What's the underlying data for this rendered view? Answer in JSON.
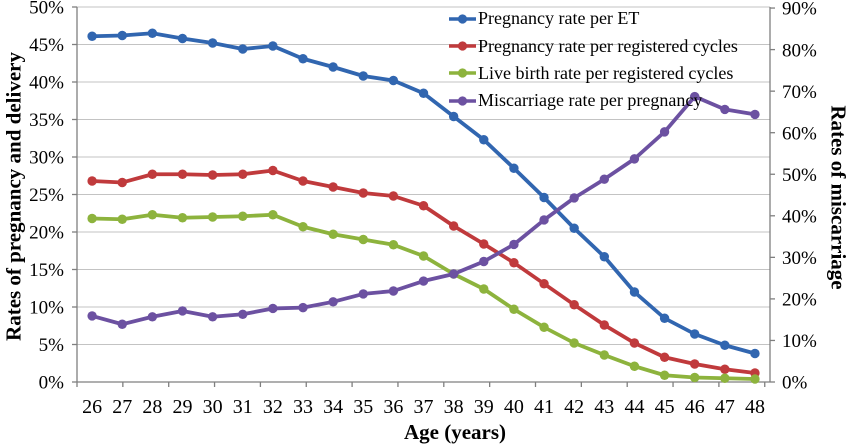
{
  "chart_data": {
    "type": "line",
    "title": "",
    "xlabel": "Age (years)",
    "x_categories": [
      "26",
      "27",
      "28",
      "29",
      "30",
      "31",
      "32",
      "33",
      "34",
      "35",
      "36",
      "37",
      "38",
      "39",
      "40",
      "41",
      "42",
      "43",
      "44",
      "45",
      "46",
      "47",
      "48"
    ],
    "left_axis": {
      "label": "Rates of pregnancy and delivery",
      "min": 0,
      "max": 50,
      "step": 5,
      "tick_labels": [
        "0%",
        "5%",
        "10%",
        "15%",
        "20%",
        "25%",
        "30%",
        "35%",
        "40%",
        "45%",
        "50%"
      ]
    },
    "right_axis": {
      "label": "Rates of miscarriage",
      "min": 0,
      "max": 90,
      "step": 10,
      "tick_labels": [
        "0%",
        "10%",
        "20%",
        "30%",
        "40%",
        "50%",
        "60%",
        "70%",
        "80%",
        "90%"
      ]
    },
    "grid": true,
    "legend_position": "top-right-inside",
    "marker": "circle",
    "series": [
      {
        "name": "Pregnancy rate per ET",
        "color": "#3166B0",
        "axis": "left",
        "values": [
          46.1,
          46.2,
          46.5,
          45.8,
          45.2,
          44.4,
          44.8,
          43.1,
          42.0,
          40.8,
          40.2,
          38.5,
          35.4,
          32.3,
          28.5,
          24.6,
          20.5,
          16.7,
          12.0,
          8.5,
          6.4,
          4.9,
          3.8
        ]
      },
      {
        "name": "Pregnancy rate per registered cycles",
        "color": "#C03A3C",
        "axis": "left",
        "values": [
          26.8,
          26.6,
          27.7,
          27.7,
          27.6,
          27.7,
          28.2,
          26.8,
          26.0,
          25.2,
          24.8,
          23.5,
          20.8,
          18.4,
          15.9,
          13.1,
          10.3,
          7.6,
          5.2,
          3.3,
          2.4,
          1.7,
          1.2
        ]
      },
      {
        "name": "Live birth rate per registered cycles",
        "color": "#8DB33D",
        "axis": "left",
        "values": [
          21.8,
          21.7,
          22.3,
          21.9,
          22.0,
          22.1,
          22.3,
          20.7,
          19.7,
          19.0,
          18.3,
          16.8,
          14.4,
          12.4,
          9.7,
          7.3,
          5.2,
          3.6,
          2.1,
          0.9,
          0.6,
          0.5,
          0.4
        ]
      },
      {
        "name": "Miscarriage rate per pregnancy",
        "color": "#6C51A1",
        "axis": "right",
        "values": [
          15.9,
          13.9,
          15.7,
          17.1,
          15.7,
          16.3,
          17.7,
          17.9,
          19.3,
          21.2,
          21.9,
          24.3,
          26.0,
          29.0,
          33.1,
          39.0,
          44.3,
          48.8,
          53.7,
          60.2,
          68.7,
          65.6,
          64.4
        ]
      }
    ],
    "style": {
      "gridline_color": "#C3C3C3",
      "axis_color": "#7F7F7F",
      "tick_label_color": "#000000",
      "line_width": 3.8,
      "marker_radius": 4.7
    }
  }
}
